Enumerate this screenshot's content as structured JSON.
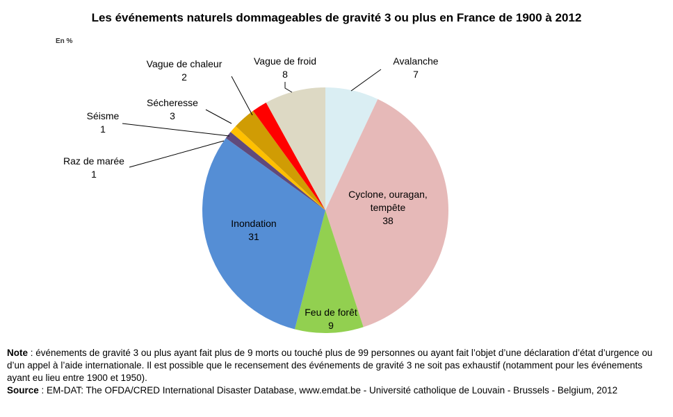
{
  "title": "Les événements naturels dommageables de gravité 3 ou plus en France de 1900 à 2012",
  "unit": "En %",
  "chart_data": {
    "type": "pie",
    "slices": [
      {
        "label": "Avalanche",
        "value": 7,
        "color": "#daeef3"
      },
      {
        "label": "Cyclone, ouragan, tempête",
        "value": 38,
        "color": "#e6b9b8"
      },
      {
        "label": "Feu de forêt",
        "value": 9,
        "color": "#92d050"
      },
      {
        "label": "Inondation",
        "value": 31,
        "color": "#558ed5"
      },
      {
        "label": "Raz de marée",
        "value": 1,
        "color": "#604a7b"
      },
      {
        "label": "Séisme",
        "value": 1,
        "color": "#ffc000"
      },
      {
        "label": "Sécheresse",
        "value": 3,
        "color": "#d09c04"
      },
      {
        "label": "Vague de chaleur",
        "value": 2,
        "color": "#ff0000"
      },
      {
        "label": "Vague de froid",
        "value": 8,
        "color": "#ddd9c4"
      }
    ]
  },
  "footer": {
    "note_label": "Note",
    "note_text": " : événements de gravité 3 ou plus ayant fait plus de 9 morts ou touché plus de 99 personnes ou ayant fait l’objet d’une déclaration d’état d’urgence ou d’un appel à l’aide internationale. Il est possible que le recensement des événements de gravité 3 ne soit pas exhaustif (notamment pour les événements ayant eu lieu entre 1900 et 1950).",
    "source_label": "Source",
    "source_text": " : EM-DAT: The OFDA/CRED International Disaster Database, www.emdat.be - Université catholique de Louvain - Brussels - Belgium, 2012"
  }
}
